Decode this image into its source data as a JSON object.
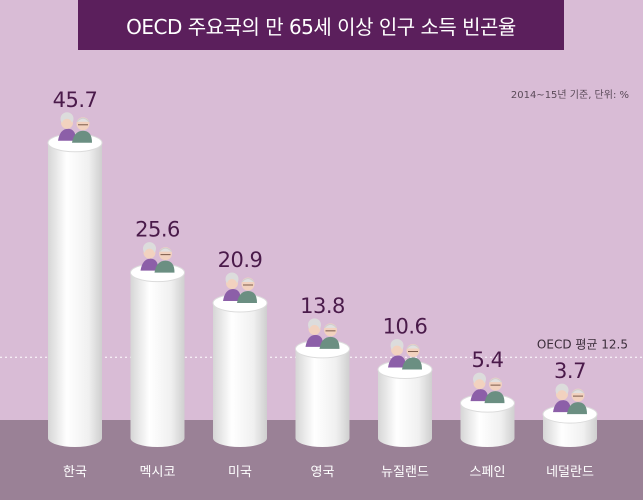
{
  "title": "OECD 주요국의 만 65세 이상 인구 소득 빈곤율",
  "note": "2014~15년 기준, 단위: %",
  "colors": {
    "banner": "#5b1f5c",
    "background": "#d9bcd6",
    "floor": "#9a8196",
    "value_text": "#4a1a4a",
    "cylinder_body": "#f4f4f4",
    "cylinder_top": "#ffffff",
    "reference_line": "#ffffff"
  },
  "chart_data": {
    "type": "bar",
    "title": "OECD 주요국의 만 65세 이상 인구 소득 빈곤율",
    "subtitle": "2014~15년 기준, 단위: %",
    "categories": [
      "한국",
      "멕시코",
      "미국",
      "영국",
      "뉴질랜드",
      "스페인",
      "네덜란드"
    ],
    "values": [
      45.7,
      25.6,
      20.9,
      13.8,
      10.6,
      5.4,
      3.7
    ],
    "value_labels": [
      "45.7",
      "25.6",
      "20.9",
      "13.8",
      "10.6",
      "5.4",
      "3.7"
    ],
    "reference_line": {
      "label": "OECD 평균 12.5",
      "value": 12.5
    },
    "bar_style": "cylinder with elderly-couple icon on top",
    "grid": false
  }
}
